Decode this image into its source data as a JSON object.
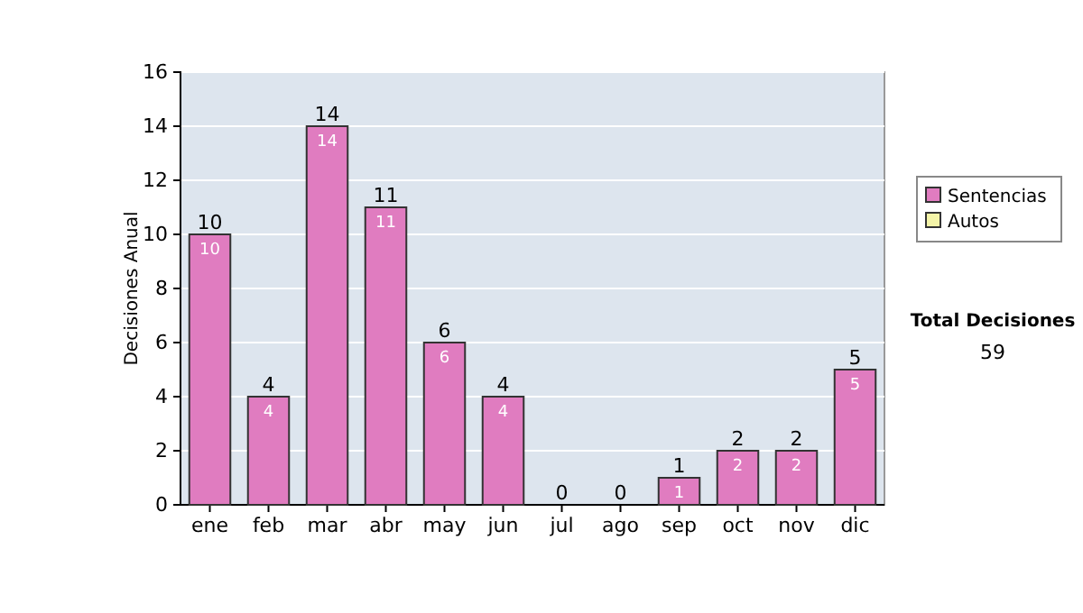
{
  "chart_data": {
    "type": "bar",
    "stacked": true,
    "categories": [
      "ene",
      "feb",
      "mar",
      "abr",
      "may",
      "jun",
      "jul",
      "ago",
      "sep",
      "oct",
      "nov",
      "dic"
    ],
    "series": [
      {
        "name": "Sentencias",
        "color": "#e07cc0",
        "values": [
          10,
          4,
          14,
          11,
          6,
          4,
          0,
          0,
          1,
          2,
          2,
          5
        ],
        "value_labels": [
          "10",
          "4",
          "14",
          "11",
          "6",
          "4",
          null,
          null,
          "1",
          "2",
          "2",
          "5"
        ]
      },
      {
        "name": "Autos",
        "color": "#f4f4a8",
        "values": [
          0,
          0,
          0,
          0,
          0,
          0,
          0,
          0,
          0,
          0,
          0,
          0
        ]
      }
    ],
    "totals": [
      "10",
      "4",
      "14",
      "11",
      "6",
      "4",
      "0",
      "0",
      "1",
      "2",
      "2",
      "5"
    ],
    "ylabel": "Decisiones Anual",
    "ylim": [
      0,
      16
    ],
    "yticks": [
      0,
      2,
      4,
      6,
      8,
      10,
      12,
      14,
      16
    ],
    "grid": "y",
    "legend": "right",
    "annotations": [
      "Total Decisiones",
      "59"
    ]
  }
}
